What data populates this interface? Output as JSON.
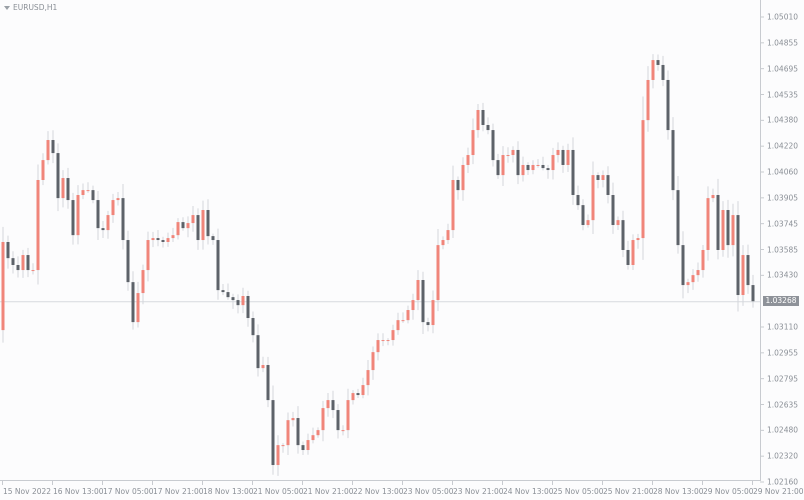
{
  "symbol_label": "EURUSD,H1",
  "current_price_label": "1.03268",
  "colors": {
    "bull": "#f0857a",
    "bear": "#5d6269",
    "axis": "#c8cbd0",
    "price_line": "#d7dade",
    "background": "#fcfcfd"
  },
  "chart_data": {
    "type": "candlestick",
    "title": "EURUSD,H1",
    "ylim": [
      1.0216,
      1.0501
    ],
    "y_ticks": [
      "1.05010",
      "1.04855",
      "1.04695",
      "1.04535",
      "1.04380",
      "1.04220",
      "1.04060",
      "1.03905",
      "1.03745",
      "1.03585",
      "1.03430",
      "1.03268",
      "1.03110",
      "1.02955",
      "1.02795",
      "1.02635",
      "1.02480",
      "1.02320",
      "1.02160"
    ],
    "x_ticks": [
      "15 Nov 2022",
      "16 Nov 13:00",
      "17 Nov 05:00",
      "17 Nov 21:00",
      "18 Nov 13:00",
      "21 Nov 05:00",
      "21 Nov 21:00",
      "22 Nov 13:00",
      "23 Nov 05:00",
      "23 Nov 21:00",
      "24 Nov 13:00",
      "25 Nov 05:00",
      "25 Nov 21:00",
      "28 Nov 13:00",
      "29 Nov 05:00",
      "29 Nov 21:00"
    ],
    "current_price": 1.03268,
    "first_open": 1.03091,
    "closes": [
      1.03631,
      1.03532,
      1.0349,
      1.03459,
      1.03551,
      1.03459,
      1.03459,
      1.04011,
      1.04133,
      1.04256,
      1.04176,
      1.039,
      1.04023,
      1.03888,
      1.03673,
      1.03919,
      1.03949,
      1.03949,
      1.03888,
      1.03716,
      1.03704,
      1.03796,
      1.03888,
      1.039,
      1.03643,
      1.03385,
      1.0314,
      1.03318,
      1.03459,
      1.03643,
      1.03655,
      1.03643,
      1.03631,
      1.03655,
      1.03673,
      1.03753,
      1.03716,
      1.03747,
      1.03796,
      1.03643,
      1.03827,
      1.03667,
      1.03643,
      1.03336,
      1.03324,
      1.03293,
      1.03275,
      1.03244,
      1.033,
      1.03165,
      1.0306,
      1.02858,
      1.02877,
      1.02662,
      1.02264,
      1.02386,
      1.02386,
      1.02539,
      1.02552,
      1.02386,
      1.02356,
      1.02417,
      1.02447,
      1.02478,
      1.02613,
      1.02662,
      1.02601,
      1.02478,
      1.02478,
      1.02662,
      1.02705,
      1.02693,
      1.02754,
      1.02846,
      1.02956,
      1.0303,
      1.0303,
      1.0303,
      1.03091,
      1.03152,
      1.03152,
      1.03214,
      1.03275,
      1.03398,
      1.0314,
      1.03122,
      1.03275,
      1.03612,
      1.03643,
      1.03704,
      1.04011,
      1.03949,
      1.04103,
      1.04164,
      1.04317,
      1.0444,
      1.04348,
      1.04317,
      1.04133,
      1.04041,
      1.04164,
      1.04164,
      1.04195,
      1.04041,
      1.04103,
      1.04072,
      1.04103,
      1.04103,
      1.04084,
      1.04072,
      1.04164,
      1.04195,
      1.04103,
      1.04195,
      1.03919,
      1.03857,
      1.03735,
      1.03765,
      1.04041,
      1.04011,
      1.04041,
      1.03919,
      1.03735,
      1.03765,
      1.03582,
      1.0349,
      1.03643,
      1.03655,
      1.04378,
      1.04624,
      1.04746,
      1.04716,
      1.04624,
      1.04317,
      1.03949,
      1.03612,
      1.03367,
      1.03385,
      1.03428,
      1.03459,
      1.03582,
      1.039,
      1.03919,
      1.03582,
      1.03827,
      1.03612,
      1.03796,
      1.03306,
      1.03551,
      1.03367,
      1.03268
    ]
  }
}
